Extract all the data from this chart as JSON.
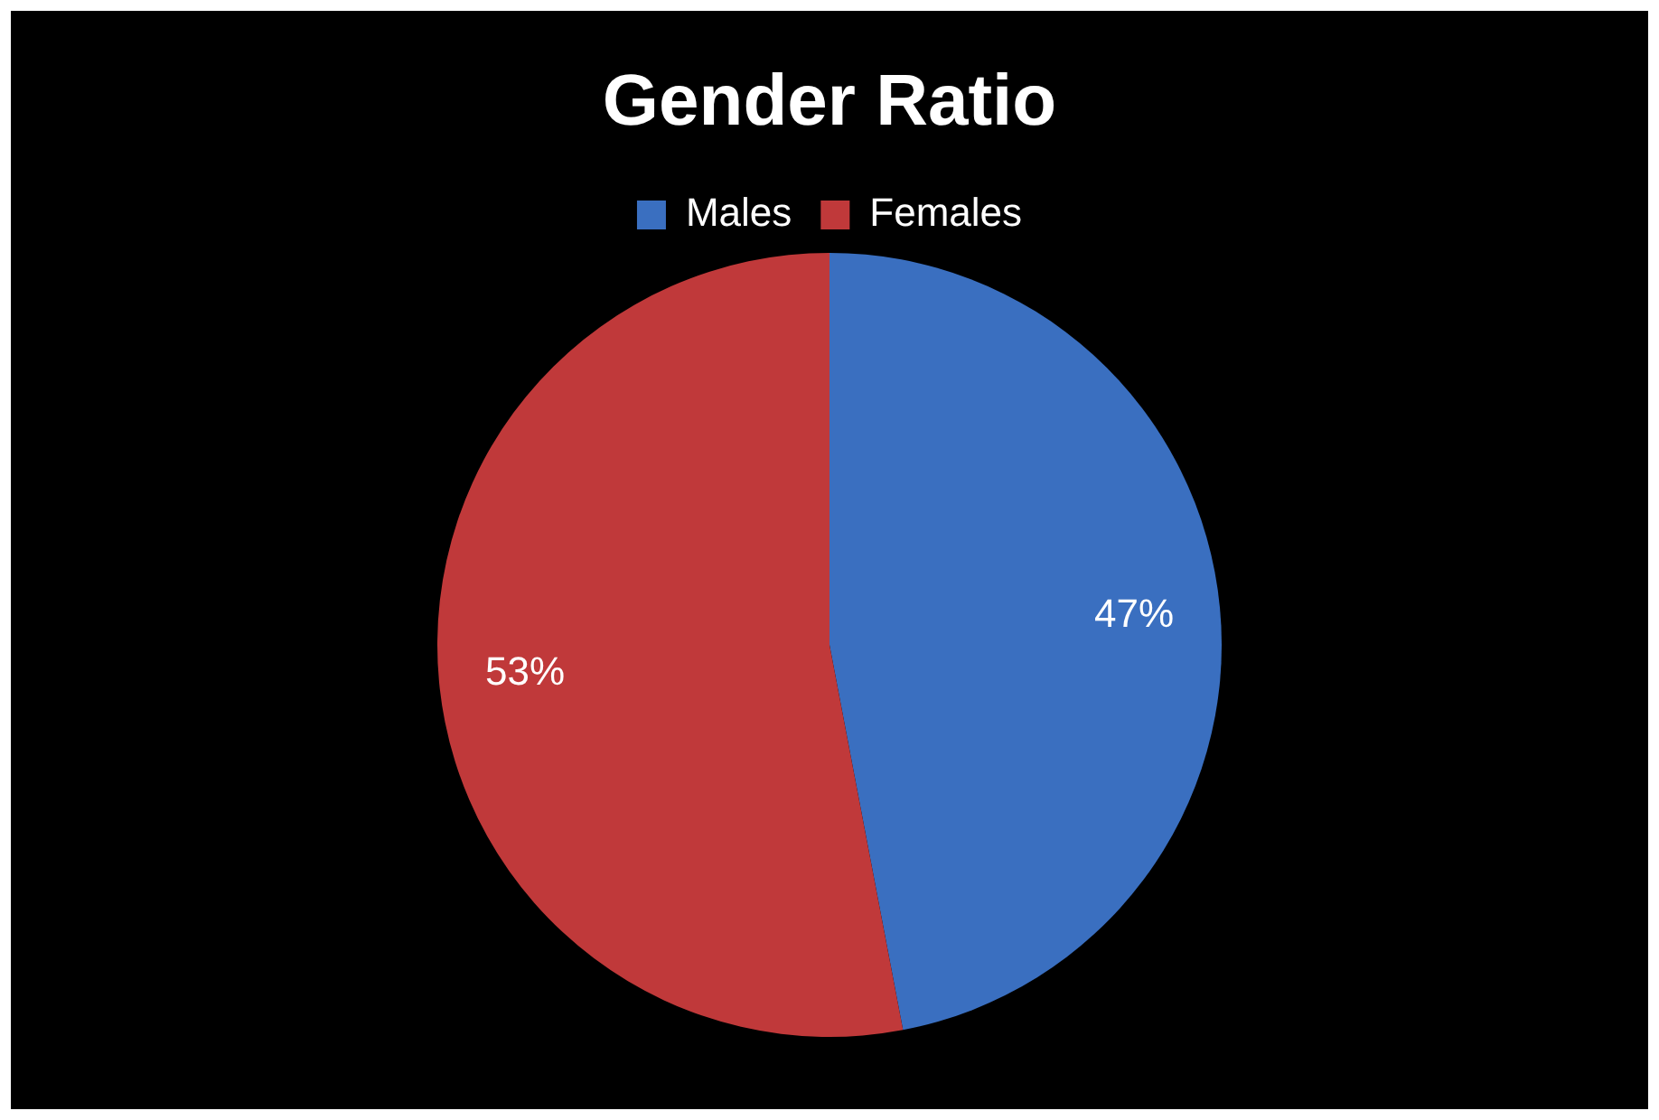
{
  "chart_data": {
    "type": "pie",
    "title": "Gender Ratio",
    "categories": [
      "Males",
      "Females"
    ],
    "values": [
      47,
      53
    ],
    "colors": [
      "#3a6fc0",
      "#c0393a"
    ],
    "value_labels": [
      "47%",
      "53%"
    ],
    "legend": "top"
  }
}
